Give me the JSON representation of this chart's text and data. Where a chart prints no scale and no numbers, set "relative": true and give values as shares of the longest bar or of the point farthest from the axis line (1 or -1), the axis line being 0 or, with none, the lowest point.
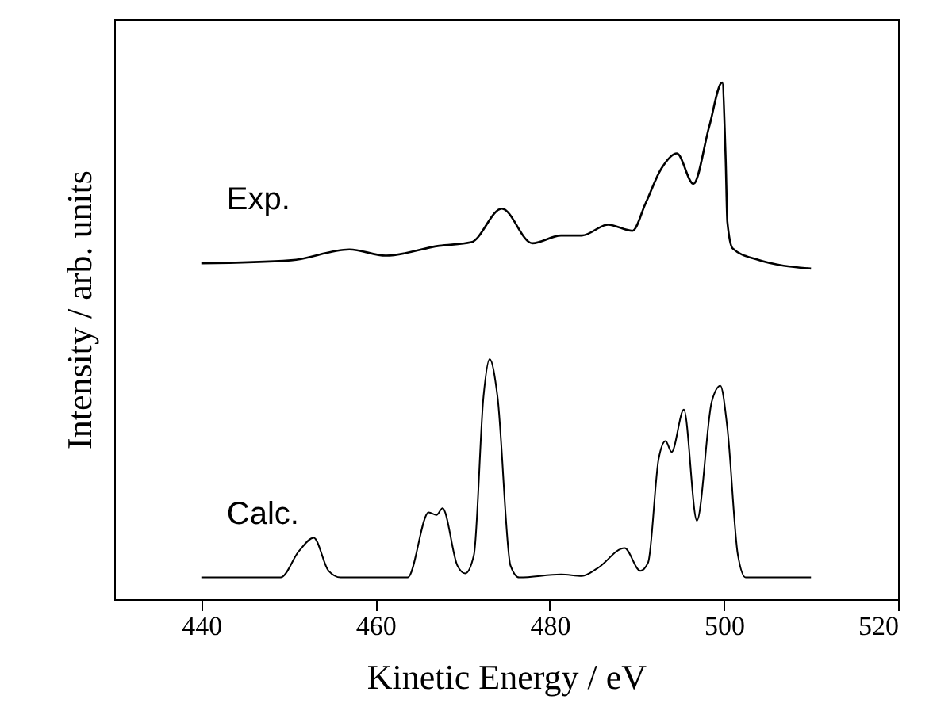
{
  "chart_data": {
    "type": "line",
    "relative": true,
    "xlabel": "Kinetic Energy / eV",
    "ylabel": "Intensity / arb. units",
    "xlim": [
      430,
      520
    ],
    "xticks": [
      440,
      460,
      480,
      500,
      520
    ],
    "line_style": "solid",
    "marker": "none",
    "series": [
      {
        "name": "Exp.",
        "color": "#000000",
        "x": [
          440,
          450.3,
          457,
          461.2,
          467.3,
          471,
          474.5,
          478,
          481.3,
          483.7,
          486.7,
          489.5,
          491,
          492.8,
          494.6,
          496.5,
          498.3,
          499.8,
          500.2,
          500.4,
          501,
          503.7,
          510
        ],
        "values": [
          0.65,
          0.656,
          0.677,
          0.665,
          0.684,
          0.691,
          0.756,
          0.689,
          0.704,
          0.704,
          0.725,
          0.713,
          0.766,
          0.833,
          0.863,
          0.804,
          0.914,
          1.0,
          0.853,
          0.73,
          0.679,
          0.658,
          0.64
        ]
      },
      {
        "name": "Calc.",
        "color": "#000000",
        "x": [
          440,
          449.1,
          451.2,
          452.9,
          454.6,
          456,
          463.7,
          466.1,
          467,
          467.7,
          469.4,
          470.3,
          471.3,
          472.4,
          473.1,
          474,
          475.5,
          476.5,
          481.3,
          483.7,
          485.5,
          488.6,
          490.4,
          491.3,
          492.5,
          493.3,
          494,
          495.4,
          496.9,
          498.6,
          499.6,
          500.4,
          501.6,
          502.5,
          510
        ],
        "values": [
          0.042,
          0.042,
          0.093,
          0.119,
          0.055,
          0.042,
          0.042,
          0.168,
          0.163,
          0.176,
          0.065,
          0.05,
          0.086,
          0.393,
          0.465,
          0.393,
          0.065,
          0.042,
          0.048,
          0.045,
          0.06,
          0.099,
          0.055,
          0.071,
          0.271,
          0.306,
          0.285,
          0.367,
          0.152,
          0.382,
          0.413,
          0.331,
          0.086,
          0.042,
          0.042
        ]
      }
    ]
  }
}
